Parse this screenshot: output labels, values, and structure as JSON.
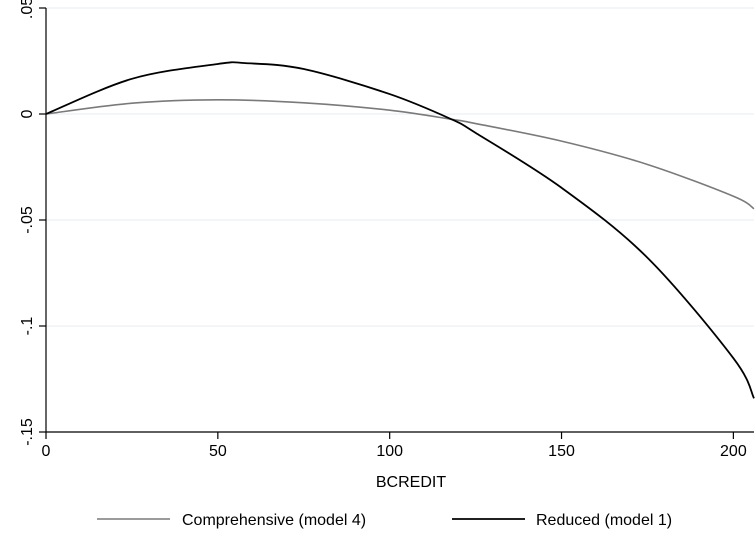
{
  "chart_data": {
    "type": "line",
    "title": "",
    "xlabel": "BCREDIT",
    "ylabel": "",
    "xlim": [
      0,
      206
    ],
    "ylim": [
      -0.15,
      0.05
    ],
    "x_ticks": [
      0,
      50,
      100,
      150,
      200
    ],
    "x_tick_labels": [
      "0",
      "50",
      "100",
      "150",
      "200"
    ],
    "y_ticks": [
      -0.15,
      -0.1,
      -0.05,
      0,
      0.05
    ],
    "y_tick_labels": [
      "-.15",
      "-.1",
      "-.05",
      "0",
      ".05"
    ],
    "grid": true,
    "legend_position": "bottom",
    "series": [
      {
        "name": "Comprehensive (model 4)",
        "color": "#7a7a7a",
        "x": [
          0,
          25,
          50,
          75,
          100,
          118,
          125,
          150,
          175,
          200,
          206
        ],
        "y": [
          0,
          0.0051,
          0.0067,
          0.0053,
          0.0018,
          -0.0025,
          -0.0045,
          -0.0128,
          -0.0238,
          -0.0388,
          -0.0447
        ]
      },
      {
        "name": "Reduced (model 1)",
        "color": "#000000",
        "x": [
          0,
          25,
          50,
          58,
          75,
          100,
          118,
          125,
          150,
          175,
          200,
          206
        ],
        "y": [
          0,
          0.0166,
          0.0236,
          0.024,
          0.0212,
          0.0094,
          -0.0025,
          -0.0089,
          -0.0348,
          -0.0678,
          -0.1152,
          -0.1341
        ]
      }
    ]
  }
}
